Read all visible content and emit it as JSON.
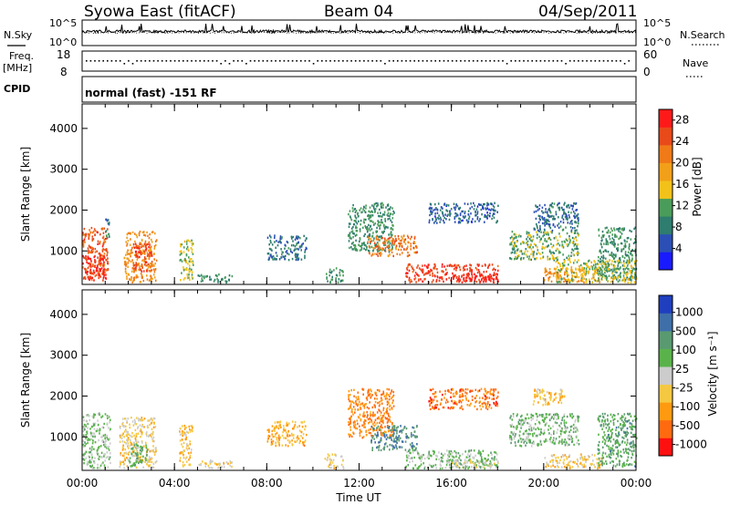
{
  "header": {
    "station": "Syowa East (fitACF)",
    "beam": "Beam 04",
    "date": "04/Sep/2011"
  },
  "nsky_panel": {
    "left_label": "N.Sky",
    "right_label": "N.Search",
    "left_ticks": [
      "10^5",
      "10^0"
    ],
    "right_ticks": [
      "10^5",
      "10^0"
    ]
  },
  "freq_panel": {
    "left_label_1": "Freq.",
    "left_label_2": "[MHz]",
    "left_ticks": [
      "18",
      "8"
    ],
    "right_label": "Nave",
    "right_ticks": [
      "60",
      "0"
    ]
  },
  "cpid_panel": {
    "label": "CPID",
    "text": "normal (fast) -151 RF"
  },
  "colors": {
    "power_scale": [
      "#1a1aff",
      "#2b4fb5",
      "#2e7d6e",
      "#4a9c5a",
      "#f2c21a",
      "#f2a019",
      "#f07a18",
      "#e84a1a",
      "#ff1a1a"
    ],
    "velocity_scale": [
      "#ff1010",
      "#ff6a10",
      "#ff9a10",
      "#f5c842",
      "#cccccc",
      "#59b34a",
      "#5a9a70",
      "#3f6fa8",
      "#1f3fbf"
    ]
  },
  "chart_data": [
    {
      "type": "heatmap",
      "name": "power",
      "ylabel": "Slant Range [km]",
      "xlabel": "",
      "x_ticks": [
        "00:00",
        "04:00",
        "08:00",
        "12:00",
        "16:00",
        "20:00",
        "00:00"
      ],
      "x_range_hours": [
        0,
        24
      ],
      "y_ticks": [
        1000,
        2000,
        3000,
        4000
      ],
      "ylim": [
        180,
        4600
      ],
      "colorbar": {
        "label": "Power [dB]",
        "ticks": [
          "4",
          "8",
          "12",
          "16",
          "20",
          "24",
          "28"
        ],
        "range": [
          0,
          30
        ]
      },
      "regions": [
        {
          "t": [
            0.0,
            1.1
          ],
          "r": [
            300,
            1600
          ],
          "v": 24
        },
        {
          "t": [
            0.0,
            1.0
          ],
          "r": [
            300,
            900
          ],
          "v": 28
        },
        {
          "t": [
            1.0,
            1.2
          ],
          "r": [
            1300,
            1800
          ],
          "v": 8
        },
        {
          "t": [
            1.8,
            3.2
          ],
          "r": [
            250,
            1500
          ],
          "v": 20
        },
        {
          "t": [
            2.2,
            3.0
          ],
          "r": [
            500,
            1200
          ],
          "v": 26
        },
        {
          "t": [
            4.2,
            4.8
          ],
          "r": [
            300,
            1300
          ],
          "v": 14
        },
        {
          "t": [
            5.0,
            6.5
          ],
          "r": [
            250,
            450
          ],
          "v": 10
        },
        {
          "t": [
            8.0,
            9.7
          ],
          "r": [
            800,
            1400
          ],
          "v": 7
        },
        {
          "t": [
            10.5,
            11.3
          ],
          "r": [
            250,
            600
          ],
          "v": 10
        },
        {
          "t": [
            11.5,
            13.5
          ],
          "r": [
            1000,
            2200
          ],
          "v": 10
        },
        {
          "t": [
            12.3,
            14.5
          ],
          "r": [
            900,
            1400
          ],
          "v": 22
        },
        {
          "t": [
            14.0,
            18.0
          ],
          "r": [
            250,
            700
          ],
          "v": 26
        },
        {
          "t": [
            15.0,
            18.0
          ],
          "r": [
            1700,
            2200
          ],
          "v": 6
        },
        {
          "t": [
            16.0,
            18.0
          ],
          "r": [
            250,
            450
          ],
          "v": 29
        },
        {
          "t": [
            18.5,
            21.5
          ],
          "r": [
            800,
            1500
          ],
          "v": 12
        },
        {
          "t": [
            19.5,
            21.5
          ],
          "r": [
            1500,
            2200
          ],
          "v": 7
        },
        {
          "t": [
            20.0,
            22.5
          ],
          "r": [
            250,
            600
          ],
          "v": 20
        },
        {
          "t": [
            22.3,
            24.0
          ],
          "r": [
            300,
            1600
          ],
          "v": 10
        },
        {
          "t": [
            20.5,
            24.0
          ],
          "r": [
            250,
            800
          ],
          "v": 14
        }
      ]
    },
    {
      "type": "heatmap",
      "name": "velocity",
      "ylabel": "Slant Range [km]",
      "xlabel": "Time UT",
      "x_ticks": [
        "00:00",
        "04:00",
        "08:00",
        "12:00",
        "16:00",
        "20:00",
        "00:00"
      ],
      "x_range_hours": [
        0,
        24
      ],
      "y_ticks": [
        1000,
        2000,
        3000,
        4000
      ],
      "ylim": [
        180,
        4600
      ],
      "colorbar": {
        "label": "Velocity [m s⁻¹]",
        "ticks": [
          "1000",
          "500",
          "100",
          "25",
          "-25",
          "-100",
          "-500",
          "-1000"
        ],
        "range": [
          -1100,
          1100
        ]
      },
      "regions": [
        {
          "t": [
            0.0,
            1.2
          ],
          "r": [
            250,
            1600
          ],
          "v": 150
        },
        {
          "t": [
            1.6,
            3.2
          ],
          "r": [
            250,
            1500
          ],
          "v": -200
        },
        {
          "t": [
            2.0,
            2.8
          ],
          "r": [
            300,
            900
          ],
          "v": 300
        },
        {
          "t": [
            4.2,
            4.8
          ],
          "r": [
            300,
            1300
          ],
          "v": -300
        },
        {
          "t": [
            5.0,
            6.5
          ],
          "r": [
            250,
            450
          ],
          "v": -150
        },
        {
          "t": [
            8.0,
            9.7
          ],
          "r": [
            800,
            1400
          ],
          "v": -400
        },
        {
          "t": [
            10.5,
            11.3
          ],
          "r": [
            250,
            600
          ],
          "v": -200
        },
        {
          "t": [
            11.5,
            13.5
          ],
          "r": [
            1000,
            2200
          ],
          "v": -600
        },
        {
          "t": [
            12.5,
            14.5
          ],
          "r": [
            700,
            1300
          ],
          "v": 600
        },
        {
          "t": [
            14.0,
            18.0
          ],
          "r": [
            250,
            700
          ],
          "v": 200
        },
        {
          "t": [
            15.0,
            18.0
          ],
          "r": [
            1700,
            2200
          ],
          "v": -700
        },
        {
          "t": [
            16.0,
            18.0
          ],
          "r": [
            250,
            450
          ],
          "v": -80
        },
        {
          "t": [
            18.5,
            21.5
          ],
          "r": [
            800,
            1600
          ],
          "v": 250
        },
        {
          "t": [
            19.5,
            21.0
          ],
          "r": [
            1800,
            2200
          ],
          "v": -300
        },
        {
          "t": [
            20.0,
            22.5
          ],
          "r": [
            250,
            600
          ],
          "v": -250
        },
        {
          "t": [
            22.3,
            24.0
          ],
          "r": [
            300,
            1600
          ],
          "v": 400
        }
      ]
    }
  ]
}
